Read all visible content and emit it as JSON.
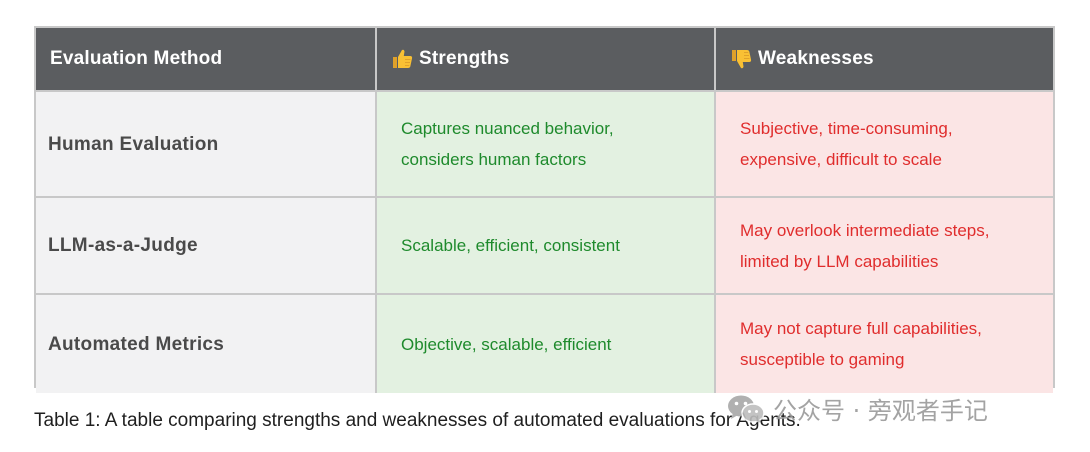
{
  "table": {
    "headers": {
      "method": "Evaluation Method",
      "strengths": "Strengths",
      "weaknesses": "Weaknesses",
      "strengths_icon": "thumbs-up-icon",
      "weaknesses_icon": "thumbs-down-icon"
    },
    "rows": [
      {
        "method": "Human Evaluation",
        "strength_lines": [
          "Captures nuanced behavior,",
          "considers human factors"
        ],
        "weakness_lines": [
          "Subjective, time-consuming,",
          "expensive, difficult to scale"
        ]
      },
      {
        "method": "LLM-as-a-Judge",
        "strength_lines": [
          "Scalable, efficient, consistent"
        ],
        "weakness_lines": [
          "May overlook intermediate steps,",
          "limited by LLM capabilities"
        ]
      },
      {
        "method": "Automated Metrics",
        "strength_lines": [
          "Objective, scalable, efficient"
        ],
        "weakness_lines": [
          "May not capture full capabilities,",
          "susceptible to gaming"
        ]
      }
    ]
  },
  "caption": "Table 1: A table comparing strengths and weaknesses of automated evaluations for Agents.",
  "watermark": {
    "text": "公众号 · 旁观者手记",
    "icon": "wechat-icon"
  },
  "colors": {
    "header_bg": "#5b5d60",
    "method_bg": "#f2f2f3",
    "strength_bg": "#e3f1e1",
    "strength_text": "#1e8a2c",
    "weakness_bg": "#fbe5e5",
    "weakness_text": "#e02d2d",
    "border": "#c8c8c8"
  }
}
